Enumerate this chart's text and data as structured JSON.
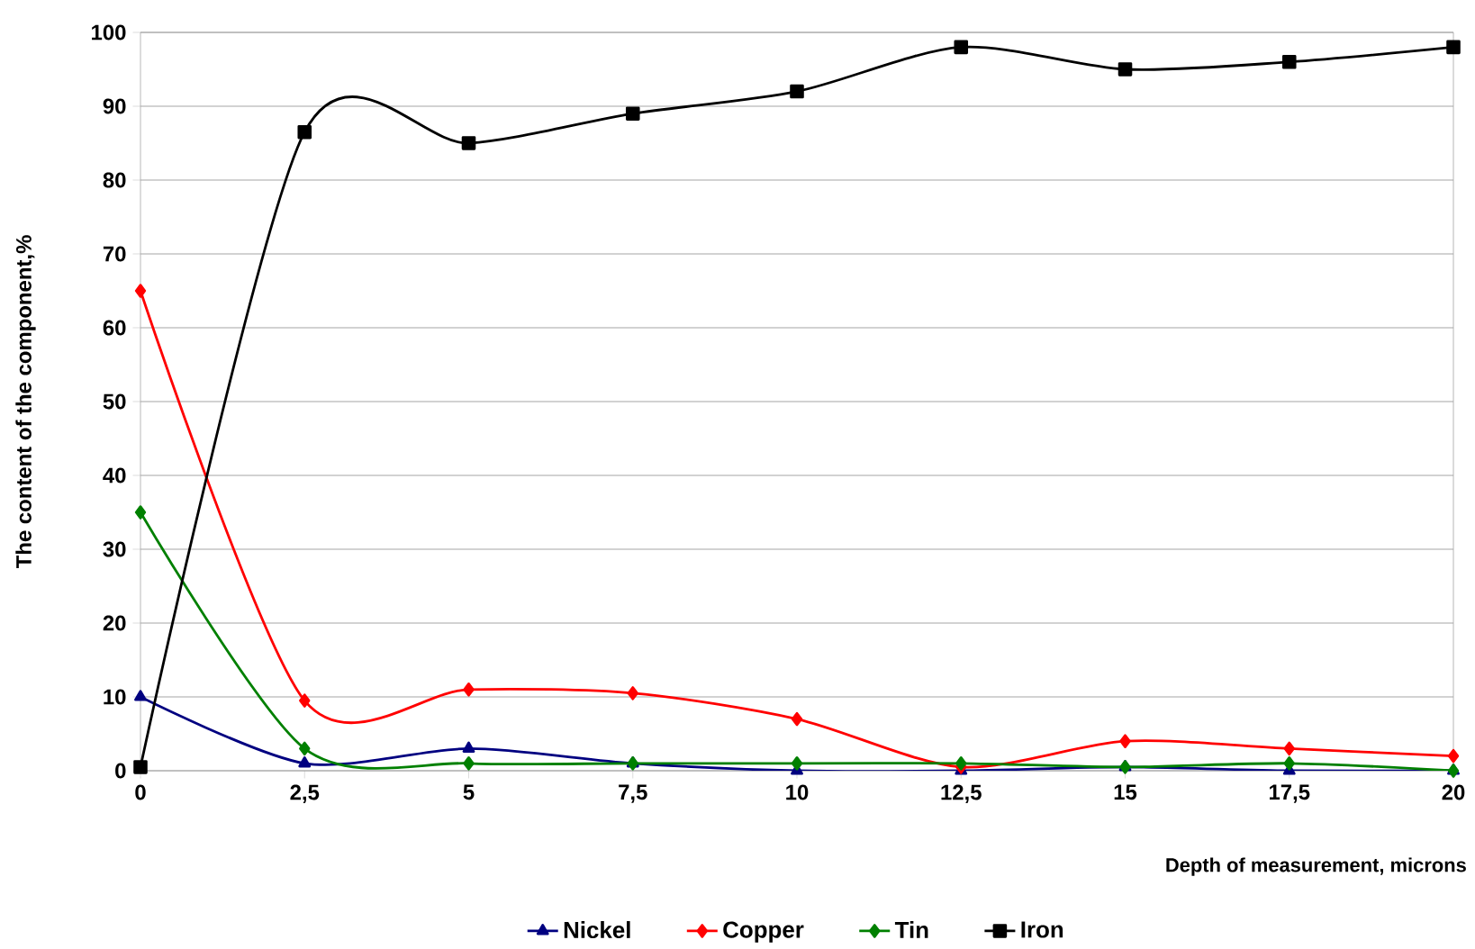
{
  "chart_data": {
    "type": "line",
    "xlabel": "Depth of measurement, microns",
    "ylabel": "The content of the component,%",
    "x": [
      0,
      2.5,
      5,
      7.5,
      10,
      12.5,
      15,
      17.5,
      20
    ],
    "xlim": [
      0,
      20
    ],
    "xticks": [
      0,
      {
        "value": 2.5,
        "label": "2,5"
      },
      5,
      {
        "value": 7.5,
        "label": "7,5"
      },
      10,
      {
        "value": 12.5,
        "label": "12,5"
      },
      15,
      {
        "value": 17.5,
        "label": "17,5"
      },
      20
    ],
    "ylim": [
      0,
      100
    ],
    "yticks": [
      0,
      10,
      20,
      30,
      40,
      50,
      60,
      70,
      80,
      90,
      100
    ],
    "grid": "y",
    "legend": "bottom",
    "line_style": "solid",
    "series": [
      {
        "name": "Nickel",
        "color": "#000080",
        "marker": "triangle",
        "values": [
          10,
          1,
          3,
          1,
          0,
          0,
          0.5,
          0,
          0
        ]
      },
      {
        "name": "Copper",
        "color": "#ff0000",
        "marker": "diamond",
        "values": [
          65,
          9.5,
          11,
          10.5,
          7,
          0.5,
          4,
          3,
          2
        ]
      },
      {
        "name": "Tin",
        "color": "#008000",
        "marker": "diamond",
        "values": [
          35,
          3,
          1,
          1,
          1,
          1,
          0.5,
          1,
          0
        ]
      },
      {
        "name": "Iron",
        "color": "#000000",
        "marker": "square",
        "values": [
          0.5,
          86.5,
          85,
          89,
          92,
          98,
          95,
          96,
          98
        ]
      }
    ]
  }
}
